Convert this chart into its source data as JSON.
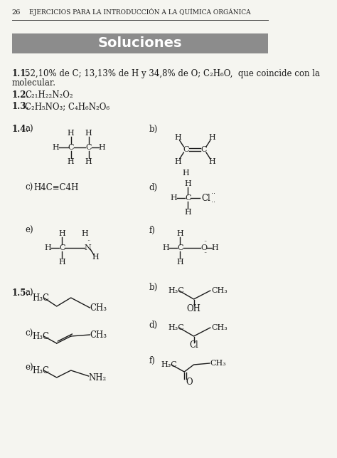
{
  "page_number": "26",
  "header_text": "EJERCICIOS PARA LA INTRODUCCIÓN A LA QUÍMICA ORGÁNICA",
  "section_title": "Soluciones",
  "section_bg": "#8c8c8c",
  "section_text_color": "#ffffff",
  "background_color": "#f5f5f0",
  "text_color": "#1a1a1a"
}
